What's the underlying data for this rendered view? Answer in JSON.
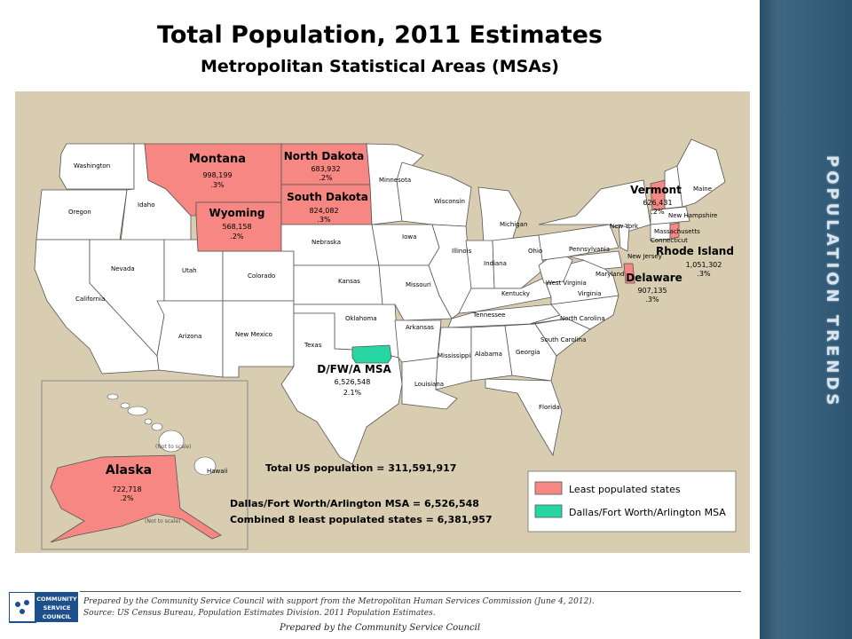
{
  "page": {
    "title": "Total Population, 2011 Estimates",
    "subtitle": "Metropolitan Statistical Areas (MSAs)",
    "sidebar_label": "POPULATION TRENDS"
  },
  "colors": {
    "least_populated": "#f78783",
    "dfw_msa": "#27d6a3",
    "other_states": "#ffffff",
    "background": "#d8cdb0"
  },
  "highlighted_states": [
    {
      "name": "Montana",
      "population": "998,199",
      "share": ".3%"
    },
    {
      "name": "North Dakota",
      "population": "683,932",
      "share": ".2%"
    },
    {
      "name": "South Dakota",
      "population": "824,082",
      "share": ".3%"
    },
    {
      "name": "Wyoming",
      "population": "568,158",
      "share": ".2%"
    },
    {
      "name": "Vermont",
      "population": "626,431",
      "share": ".2%"
    },
    {
      "name": "Rhode Island",
      "population": "1,051,302",
      "share": ".3%"
    },
    {
      "name": "Delaware",
      "population": "907,135",
      "share": ".3%"
    },
    {
      "name": "Alaska",
      "population": "722,718",
      "share": ".2%"
    }
  ],
  "dfw": {
    "name": "D/FW/A MSA",
    "population": "6,526,548",
    "share": "2.1%"
  },
  "state_labels": [
    "Washington",
    "Oregon",
    "Idaho",
    "California",
    "Nevada",
    "Utah",
    "Arizona",
    "Colorado",
    "New Mexico",
    "Nebraska",
    "Kansas",
    "Oklahoma",
    "Texas",
    "Minnesota",
    "Iowa",
    "Missouri",
    "Arkansas",
    "Louisiana",
    "Wisconsin",
    "Illinois",
    "Michigan",
    "Indiana",
    "Ohio",
    "Kentucky",
    "Tennessee",
    "Mississippi",
    "Alabama",
    "Georgia",
    "Florida",
    "South Carolina",
    "North Carolina",
    "Virginia",
    "West Virginia",
    "Maryland",
    "Pennsylvania",
    "New York",
    "New Jersey",
    "Connecticut",
    "Massachusetts",
    "New Hampshire",
    "Maine",
    "Hawaii"
  ],
  "inset_notes": {
    "not_to_scale_1": "(Not to scale)",
    "not_to_scale_2": "(Not to scale)"
  },
  "stats": {
    "total_us": "Total US population = 311,591,917",
    "dfw_msa": "Dallas/Fort Worth/Arlington MSA = 6,526,548",
    "combined": "Combined 8 least populated states = 6,381,957"
  },
  "legend": [
    {
      "label": "Least populated states",
      "color": "#f78783"
    },
    {
      "label": "Dallas/Fort Worth/Arlington MSA",
      "color": "#27d6a3"
    }
  ],
  "footer": {
    "logo_lines": [
      "COMMUNITY",
      "SERVICE",
      "COUNCIL"
    ],
    "note1": "Prepared by the Community Service Council with support from the Metropolitan Human Services Commission (June 4, 2012).",
    "note2": "Source:  US Census Bureau, Population Estimates Division. 2011 Population Estimates.",
    "prepared": "Prepared by the Community Service Council"
  }
}
